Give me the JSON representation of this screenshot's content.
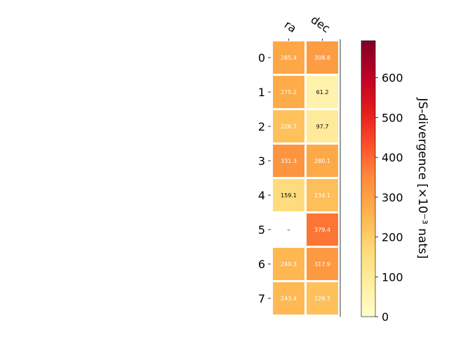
{
  "chart_data": {
    "type": "heatmap",
    "columns": [
      "ra",
      "dec"
    ],
    "rows": [
      "0",
      "1",
      "2",
      "3",
      "4",
      "5",
      "6",
      "7"
    ],
    "values": [
      [
        285.4,
        308.8
      ],
      [
        275.2,
        61.2
      ],
      [
        226.7,
        97.7
      ],
      [
        331.3,
        280.1
      ],
      [
        159.1,
        234.1
      ],
      [
        null,
        379.4
      ],
      [
        249.3,
        317.9
      ],
      [
        243.4,
        229.7
      ]
    ],
    "missing_label": "–",
    "colorbar": {
      "label": "JS-divergence [×10⁻³ nats]",
      "ticks": [
        0,
        100,
        200,
        300,
        400,
        500,
        600
      ],
      "range": [
        0,
        693
      ],
      "colormap": "YlOrRd"
    },
    "grid": false
  }
}
